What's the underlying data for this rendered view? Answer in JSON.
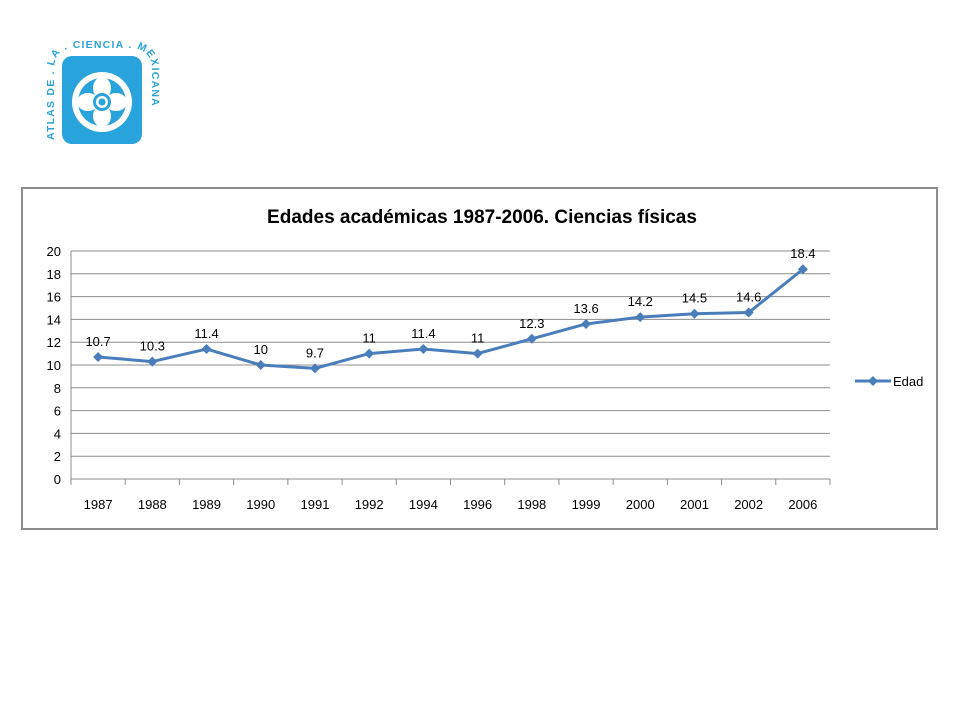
{
  "logo": {
    "text": "ATLAS DE . LA . CIENCIA . MEXICANA",
    "color": "#29a3dc"
  },
  "chart_data": {
    "type": "line",
    "title": "Edades académicas 1987-2006. Ciencias físicas",
    "categories": [
      "1987",
      "1988",
      "1989",
      "1990",
      "1991",
      "1992",
      "1994",
      "1996",
      "1998",
      "1999",
      "2000",
      "2001",
      "2002",
      "2006"
    ],
    "series": [
      {
        "name": "Edad",
        "values": [
          10.7,
          10.3,
          11.4,
          10,
          9.7,
          11,
          11.4,
          11,
          12.3,
          13.6,
          14.2,
          14.5,
          14.6,
          18.4
        ],
        "color": "#4a7ebb",
        "marker": "diamond"
      }
    ],
    "ylim": [
      0,
      20
    ],
    "yticks": [
      0,
      2,
      4,
      6,
      8,
      10,
      12,
      14,
      16,
      18,
      20
    ],
    "grid": true,
    "legend_position": "right"
  }
}
